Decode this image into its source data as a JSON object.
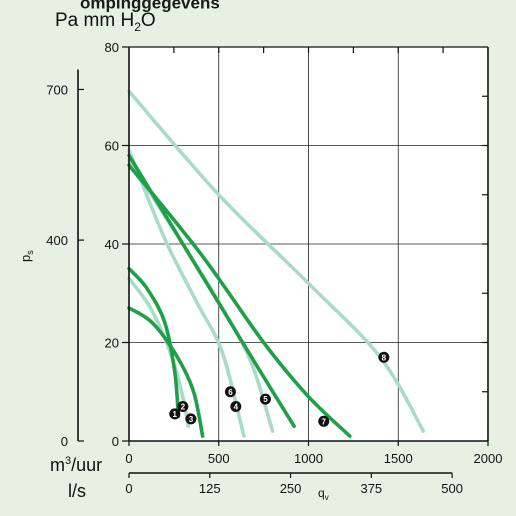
{
  "header": {
    "title_fragment": "ompinggegevens"
  },
  "chart_data": {
    "type": "line",
    "unit_labels": {
      "pa_mm": "Pa mm ",
      "h": "H",
      "sub2": "2",
      "o": "O"
    },
    "ylabel": "p",
    "ylabel_sub": "s",
    "xlabel": "q",
    "xlabel_sub": "v",
    "x_unit_m3": "m",
    "x_unit_m3_sup": "3",
    "x_unit_m3_rest": "/uur",
    "x_unit_ls": "l/s",
    "mmh2o_axis": {
      "range": [
        0,
        80
      ],
      "ticks": [
        0,
        20,
        40,
        60,
        80
      ]
    },
    "pa_axis": {
      "ticks": [
        0,
        400,
        700
      ]
    },
    "m3h_axis": {
      "range": [
        0,
        2000
      ],
      "ticks": [
        0,
        500,
        1000,
        1500,
        2000
      ]
    },
    "ls_axis": {
      "ticks": [
        0,
        125,
        250,
        375,
        500
      ]
    },
    "grid": true,
    "series": [
      {
        "name": "1",
        "color": "#1fa047",
        "points": [
          [
            0,
            35
          ],
          [
            100,
            31
          ],
          [
            200,
            24
          ],
          [
            255,
            14
          ],
          [
            275,
            5
          ]
        ],
        "label_at": [
          255,
          5.5
        ]
      },
      {
        "name": "2",
        "color": "#a8dcc8",
        "points": [
          [
            0,
            33
          ],
          [
            120,
            27
          ],
          [
            230,
            18
          ],
          [
            300,
            9
          ],
          [
            330,
            3
          ]
        ],
        "label_at": [
          300,
          7
        ]
      },
      {
        "name": "3",
        "color": "#1fa047",
        "points": [
          [
            0,
            27
          ],
          [
            130,
            24
          ],
          [
            270,
            17
          ],
          [
            360,
            10
          ],
          [
            410,
            1
          ]
        ],
        "label_at": [
          345,
          4.5
        ]
      },
      {
        "name": "4",
        "color": "#a8dcc8",
        "points": [
          [
            0,
            59
          ],
          [
            200,
            41
          ],
          [
            380,
            28
          ],
          [
            520,
            18
          ],
          [
            640,
            1
          ]
        ],
        "label_at": [
          595,
          7
        ]
      },
      {
        "name": "5",
        "color": "#1fa047",
        "points": [
          [
            0,
            58
          ],
          [
            250,
            43
          ],
          [
            500,
            28
          ],
          [
            700,
            16
          ],
          [
            920,
            3
          ]
        ],
        "label_at": [
          760,
          8.5
        ]
      },
      {
        "name": "6",
        "color": "#a8dcc8",
        "points": [
          [
            0,
            57
          ],
          [
            300,
            40
          ],
          [
            520,
            27
          ],
          [
            680,
            16
          ],
          [
            800,
            2
          ]
        ],
        "label_at": [
          565,
          10
        ]
      },
      {
        "name": "7",
        "color": "#1fa047",
        "points": [
          [
            0,
            56
          ],
          [
            400,
            38
          ],
          [
            750,
            20
          ],
          [
            1000,
            9
          ],
          [
            1230,
            1
          ]
        ],
        "label_at": [
          1085,
          4
        ]
      },
      {
        "name": "8",
        "color": "#a8dcc8",
        "points": [
          [
            0,
            71
          ],
          [
            500,
            50
          ],
          [
            1000,
            32
          ],
          [
            1400,
            17
          ],
          [
            1640,
            2
          ]
        ],
        "label_at": [
          1420,
          17
        ]
      }
    ]
  }
}
